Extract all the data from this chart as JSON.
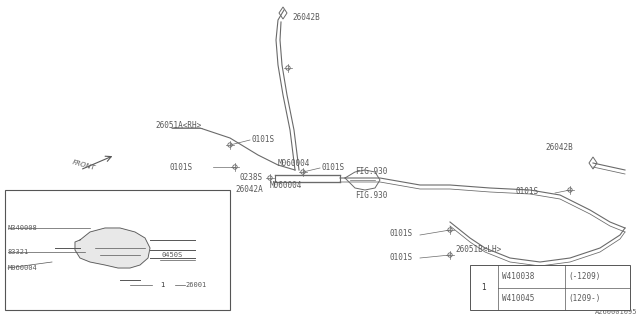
{
  "bg_color": "#ffffff",
  "lc": "#6a6a6a",
  "tc": "#5a5a5a",
  "fig_id": "A260001095",
  "legend_rows": [
    {
      "part": "W410038",
      "range": "(-1209)"
    },
    {
      "part": "W410045",
      "range": "(1209-)"
    }
  ]
}
